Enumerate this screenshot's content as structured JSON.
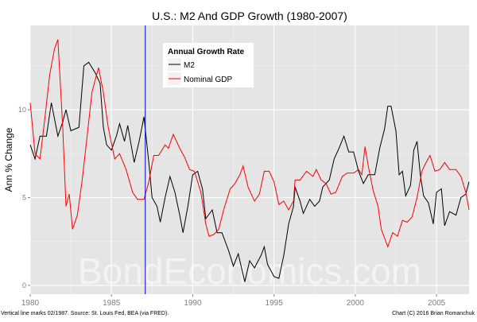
{
  "chart_data": {
    "type": "line",
    "title": "U.S.: M2 And GDP Growth (1980-2007)",
    "xlabel": "",
    "ylabel": "Ann % Change",
    "xlim": [
      1980,
      2007
    ],
    "ylim": [
      -0.5,
      14.8
    ],
    "x_ticks": [
      "1980",
      "1985",
      "1990",
      "1995",
      "2000",
      "2005"
    ],
    "y_ticks": [
      "0",
      "5",
      "10"
    ],
    "grid": true,
    "legend": {
      "title": "Annual Growth Rate",
      "placement": "top-left-inside"
    },
    "vertical_line": {
      "x": 1987.08,
      "label": "02/1987",
      "color": "#0000cc"
    },
    "watermark": "BondEconomics.com",
    "series": [
      {
        "name": "M2",
        "color": "#000000",
        "x": [
          1980,
          1980.3,
          1980.6,
          1981,
          1981.3,
          1981.7,
          1982,
          1982.2,
          1982.5,
          1983,
          1983.3,
          1983.6,
          1984,
          1984.3,
          1984.5,
          1984.7,
          1985,
          1985.3,
          1985.5,
          1985.8,
          1986,
          1986.4,
          1986.7,
          1987,
          1987.3,
          1987.5,
          1987.8,
          1988,
          1988.3,
          1988.6,
          1988.9,
          1989.2,
          1989.4,
          1989.7,
          1990,
          1990.3,
          1990.6,
          1990.8,
          1991.2,
          1991.5,
          1991.8,
          1992.2,
          1992.5,
          1992.8,
          1993.2,
          1993.5,
          1993.8,
          1994.2,
          1994.4,
          1994.6,
          1995,
          1995.3,
          1995.6,
          1995.9,
          1996.2,
          1996.3,
          1996.6,
          1996.8,
          1997.2,
          1997.5,
          1997.8,
          1998,
          1998.4,
          1998.7,
          1999,
          1999.3,
          1999.6,
          1999.9,
          2000.2,
          2000.5,
          2000.8,
          2001.2,
          2001.5,
          2001.8,
          2002,
          2002.2,
          2002.5,
          2002.7,
          2002.9,
          2003.1,
          2003.4,
          2003.6,
          2003.8,
          2004,
          2004.2,
          2004.5,
          2004.8,
          2005,
          2005.3,
          2005.5,
          2005.8,
          2006.2,
          2006.5,
          2006.8,
          2007
        ],
        "y": [
          8,
          7.2,
          8.5,
          8.5,
          10.4,
          8.5,
          9.3,
          10,
          8.8,
          9,
          12.5,
          12.7,
          12.1,
          11.5,
          9,
          8,
          7.7,
          8.5,
          9.2,
          8.2,
          9.1,
          7,
          8.2,
          9.6,
          7,
          5,
          4.5,
          3.6,
          5,
          6.2,
          5.3,
          4,
          3,
          4.5,
          6.3,
          6.5,
          5.5,
          3.8,
          4.3,
          3,
          3,
          2,
          1.1,
          1.8,
          0.2,
          1.4,
          1,
          1.7,
          2.2,
          1.2,
          0.5,
          0.4,
          1.7,
          3.5,
          4.5,
          5.6,
          4.8,
          4.1,
          4.9,
          4.5,
          4.8,
          5.6,
          6,
          7.2,
          7.8,
          8.5,
          7.6,
          7.6,
          6.5,
          5.8,
          6.3,
          6.3,
          7.8,
          8.9,
          10.2,
          10.2,
          8.8,
          6.3,
          6.5,
          5.1,
          5.7,
          7.7,
          8.2,
          6.3,
          5.1,
          4.7,
          3.5,
          5.3,
          5.5,
          3.4,
          4.2,
          4,
          5,
          5.2,
          5.9
        ]
      },
      {
        "name": "Nominal GDP",
        "color": "#ff0000",
        "x": [
          1980,
          1980.3,
          1980.6,
          1980.9,
          1981.2,
          1981.5,
          1981.7,
          1982,
          1982.2,
          1982.4,
          1982.6,
          1982.9,
          1983.2,
          1983.5,
          1983.8,
          1984.2,
          1984.5,
          1984.8,
          1985.2,
          1985.5,
          1985.9,
          1986.3,
          1986.6,
          1987,
          1987.3,
          1987.6,
          1987.9,
          1988.3,
          1988.5,
          1988.8,
          1989.2,
          1989.5,
          1989.8,
          1990.1,
          1990.5,
          1990.8,
          1991,
          1991.3,
          1991.6,
          1991.9,
          1992.3,
          1992.6,
          1992.9,
          1993.1,
          1993.4,
          1993.8,
          1994.1,
          1994.4,
          1994.7,
          1995,
          1995.3,
          1995.6,
          1995.9,
          1996.2,
          1996.3,
          1996.6,
          1997,
          1997.4,
          1997.6,
          1997.9,
          1998.2,
          1998.5,
          1998.8,
          1999.2,
          1999.5,
          1999.9,
          2000.2,
          2000.4,
          2000.6,
          2000.8,
          2001.1,
          2001.4,
          2001.6,
          2001.8,
          2002,
          2002.3,
          2002.6,
          2002.9,
          2003.2,
          2003.5,
          2003.8,
          2004.1,
          2004.3,
          2004.6,
          2004.9,
          2005.2,
          2005.5,
          2005.8,
          2006.2,
          2006.5,
          2006.8,
          2007
        ],
        "y": [
          10.4,
          7.5,
          7.2,
          9.5,
          12,
          13.5,
          14,
          9,
          4.5,
          5.2,
          3.2,
          4,
          6,
          8.5,
          11,
          12.4,
          11,
          9,
          7.2,
          7.5,
          6.6,
          5.3,
          4.9,
          4.9,
          5.9,
          7.4,
          7.4,
          8,
          7.8,
          8.6,
          7.8,
          7.3,
          6.6,
          6.5,
          5.3,
          3.5,
          2.8,
          2.9,
          3.2,
          4.3,
          5.5,
          5.8,
          6.3,
          6.8,
          5.6,
          4.8,
          5.2,
          6.5,
          6.5,
          5.9,
          4.6,
          4.8,
          4.3,
          4.8,
          6,
          6,
          6.5,
          6.2,
          6.6,
          6,
          5.8,
          5.2,
          5.3,
          6.2,
          6.4,
          6.4,
          6.6,
          6.3,
          7.9,
          6.8,
          5.4,
          4.5,
          3.2,
          2.7,
          2.2,
          3,
          2.8,
          3.7,
          3.6,
          3.9,
          5,
          6.5,
          6.9,
          7.4,
          6.5,
          6.6,
          7,
          6.6,
          6.6,
          6.2,
          5.3,
          4.3
        ]
      }
    ]
  },
  "footer": {
    "left": "Vertical line marks 02/1987. Source: St. Louis Fed, BEA (via FRED).",
    "right": "Chart (C) 2016 Brian Romanchuk"
  }
}
